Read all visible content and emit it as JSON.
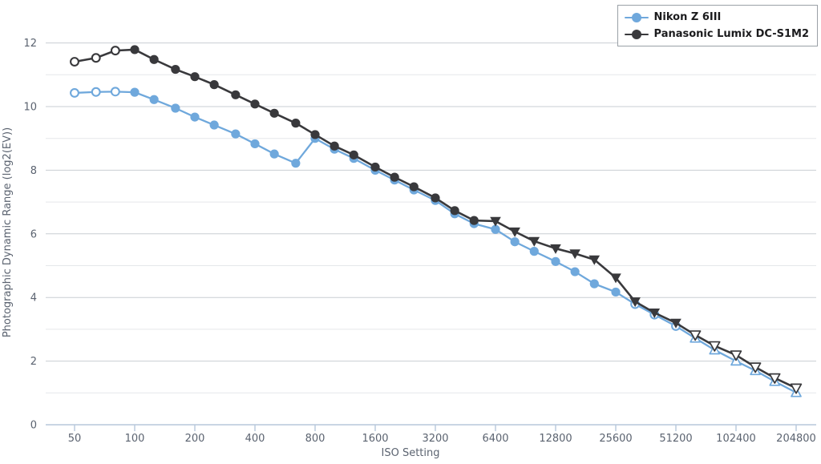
{
  "page": {
    "background": "#ffffff"
  },
  "legend": {
    "items": [
      {
        "label": "Nikon Z 6III",
        "color": "#6fa8dc"
      },
      {
        "label": "Panasonic Lumix DC-S1M2",
        "color": "#39393c"
      }
    ]
  },
  "colors": {
    "axis_line": "#b7c7db",
    "grid_major": "#c9ced3",
    "grid_minor": "#e5e7ea",
    "tick_text": "#5b6370",
    "open_marker_fill": "#ffffff"
  },
  "chart_data": {
    "type": "line",
    "title": "",
    "xlabel": "ISO Setting",
    "ylabel": "Photographic Dynamic Range (log2(EV))",
    "x_scale": "log2",
    "grid": "horizontal",
    "ylim": [
      0,
      12
    ],
    "y_ticks": [
      0,
      2,
      4,
      6,
      8,
      10,
      12
    ],
    "y_minor_gridlines": [
      1,
      3,
      5,
      7,
      9,
      11
    ],
    "x_ticks": [
      50,
      100,
      200,
      400,
      800,
      1600,
      3200,
      6400,
      12800,
      25600,
      51200,
      102400,
      204800
    ],
    "legend_position": "top-right",
    "marker_key": {
      "oc": "open-circle (extended ISO)",
      "fc": "filled-circle",
      "ftd": "filled-triangle-down",
      "otd": "open-triangle-down (extended ISO)",
      "otu": "open-triangle-up (extended ISO)"
    },
    "categories": [
      50,
      64,
      80,
      100,
      125,
      160,
      200,
      250,
      320,
      400,
      500,
      640,
      800,
      1000,
      1250,
      1600,
      2000,
      2500,
      3200,
      4000,
      5000,
      6400,
      8000,
      10000,
      12800,
      16000,
      20000,
      25600,
      32000,
      40000,
      51200,
      64000,
      80000,
      102400,
      128000,
      160000,
      204800
    ],
    "series": [
      {
        "name": "Nikon Z 6III",
        "color": "#6fa8dc",
        "values": [
          10.43,
          10.46,
          10.47,
          10.45,
          10.22,
          9.95,
          9.67,
          9.42,
          9.14,
          8.83,
          8.51,
          8.22,
          9.0,
          8.66,
          8.37,
          8.0,
          7.69,
          7.38,
          7.05,
          6.63,
          6.32,
          6.14,
          5.75,
          5.45,
          5.13,
          4.81,
          4.43,
          4.17,
          3.79,
          3.46,
          3.1,
          2.72,
          2.35,
          2.0,
          1.7,
          1.36,
          1.01
        ],
        "markers": [
          "oc",
          "oc",
          "oc",
          "fc",
          "fc",
          "fc",
          "fc",
          "fc",
          "fc",
          "fc",
          "fc",
          "fc",
          "fc",
          "fc",
          "fc",
          "fc",
          "fc",
          "fc",
          "fc",
          "fc",
          "fc",
          "fc",
          "fc",
          "fc",
          "fc",
          "fc",
          "fc",
          "fc",
          "oc",
          "oc",
          "oc",
          "otu",
          "otu",
          "otu",
          "otu",
          "otu",
          "otu"
        ]
      },
      {
        "name": "Panasonic Lumix DC-S1M2",
        "color": "#39393c",
        "values": [
          11.41,
          11.53,
          11.76,
          11.79,
          11.48,
          11.17,
          10.94,
          10.69,
          10.37,
          10.08,
          9.79,
          9.48,
          9.12,
          8.76,
          8.48,
          8.1,
          7.78,
          7.48,
          7.13,
          6.73,
          6.42,
          6.4,
          6.07,
          5.77,
          5.54,
          5.38,
          5.19,
          4.62,
          3.87,
          3.52,
          3.2,
          2.82,
          2.48,
          2.19,
          1.81,
          1.47,
          1.15
        ],
        "markers": [
          "oc",
          "oc",
          "oc",
          "fc",
          "fc",
          "fc",
          "fc",
          "fc",
          "fc",
          "fc",
          "fc",
          "fc",
          "fc",
          "fc",
          "fc",
          "fc",
          "fc",
          "fc",
          "fc",
          "fc",
          "fc",
          "ftd",
          "ftd",
          "ftd",
          "ftd",
          "ftd",
          "ftd",
          "ftd",
          "ftd",
          "ftd",
          "ftd",
          "otd",
          "otd",
          "otd",
          "otd",
          "otd",
          "otd"
        ]
      }
    ]
  }
}
